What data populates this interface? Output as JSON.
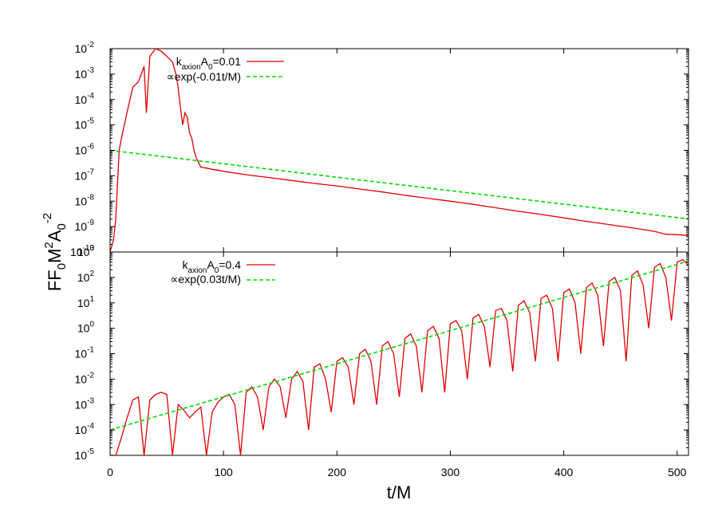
{
  "chart_data": [
    {
      "type": "line",
      "panel": "top",
      "x_range": [
        0,
        510
      ],
      "y_scale": "log",
      "ylim": [
        1e-10,
        0.01
      ],
      "y_ticks": [
        {
          "base": "10",
          "exp": "-10"
        },
        {
          "base": "10",
          "exp": "-9"
        },
        {
          "base": "10",
          "exp": "-8"
        },
        {
          "base": "10",
          "exp": "-7"
        },
        {
          "base": "10",
          "exp": "-6"
        },
        {
          "base": "10",
          "exp": "-5"
        },
        {
          "base": "10",
          "exp": "-4"
        },
        {
          "base": "10",
          "exp": "-3"
        },
        {
          "base": "10",
          "exp": "-2"
        }
      ],
      "legend_position": "top-left",
      "series": [
        {
          "name": "kaxionA0=0.01",
          "legend": {
            "main1": "k",
            "sub1": "axion",
            "main2": "A",
            "sub2": "0",
            "main3": "=0.01"
          },
          "color": "#e00000",
          "style": "solid",
          "x": [
            0,
            3,
            5,
            8,
            10,
            14,
            17,
            20,
            25,
            30,
            32,
            35,
            40,
            45,
            50,
            55,
            58,
            60,
            62,
            64,
            66,
            68,
            70,
            72,
            74,
            76,
            80,
            90,
            100,
            120,
            140,
            160,
            180,
            200,
            220,
            240,
            260,
            280,
            300,
            320,
            340,
            360,
            380,
            400,
            420,
            440,
            460,
            480,
            490,
            500,
            510
          ],
          "y": [
            1e-10,
            3e-10,
            2e-09,
            1e-06,
            3e-06,
            2e-05,
            8e-05,
            0.0003,
            0.0005,
            0.002,
            3e-05,
            0.005,
            0.01,
            0.008,
            0.005,
            0.003,
            0.001,
            0.0003,
            5e-05,
            1e-05,
            3e-05,
            2e-05,
            5e-06,
            3e-06,
            1e-06,
            5e-07,
            2.2e-07,
            1.8e-07,
            1.5e-07,
            1.1e-07,
            8.5e-08,
            6.5e-08,
            5e-08,
            4e-08,
            3e-08,
            2.3e-08,
            1.7e-08,
            1.3e-08,
            1e-08,
            7.5e-09,
            5.5e-09,
            4e-09,
            3e-09,
            2.2e-09,
            1.6e-09,
            1.2e-09,
            9e-10,
            6.5e-10,
            5e-10,
            4.8e-10,
            4.5e-10
          ]
        },
        {
          "name": "∝exp(-0.01t/M)",
          "color": "#00dd00",
          "style": "dashed",
          "x": [
            0,
            510
          ],
          "y": [
            1e-06,
            2e-09
          ]
        }
      ]
    },
    {
      "type": "line",
      "panel": "bottom",
      "x_range": [
        0,
        510
      ],
      "y_scale": "log",
      "ylim": [
        1e-05,
        1000.0
      ],
      "y_ticks": [
        {
          "base": "10",
          "exp": "-5"
        },
        {
          "base": "10",
          "exp": "-4"
        },
        {
          "base": "10",
          "exp": "-3"
        },
        {
          "base": "10",
          "exp": "-2"
        },
        {
          "base": "10",
          "exp": "-1"
        },
        {
          "base": "10",
          "exp": "0"
        },
        {
          "base": "10",
          "exp": "1"
        },
        {
          "base": "10",
          "exp": "2"
        },
        {
          "base": "10",
          "exp": "3"
        }
      ],
      "x_ticks": [
        "0",
        "100",
        "200",
        "300",
        "400",
        "500"
      ],
      "x_tick_values": [
        0,
        100,
        200,
        300,
        400,
        500
      ],
      "legend_position": "top-left",
      "series": [
        {
          "name": "kaxionA0=0.4",
          "legend": {
            "main1": "k",
            "sub1": "axion",
            "main2": "A",
            "sub2": "0",
            "main3": "=0.4"
          },
          "color": "#e00000",
          "style": "solid",
          "x": [
            0,
            5,
            10,
            15,
            20,
            25,
            30,
            35,
            40,
            45,
            50,
            55,
            60,
            65,
            70,
            75,
            80,
            85,
            90,
            95,
            100,
            105,
            110,
            115,
            120,
            125,
            130,
            135,
            140,
            145,
            150,
            155,
            160,
            165,
            170,
            175,
            180,
            185,
            190,
            195,
            200,
            205,
            210,
            215,
            220,
            225,
            230,
            235,
            240,
            245,
            250,
            255,
            260,
            265,
            270,
            275,
            280,
            285,
            290,
            295,
            300,
            305,
            310,
            315,
            320,
            325,
            330,
            335,
            340,
            345,
            350,
            355,
            360,
            365,
            370,
            375,
            380,
            385,
            390,
            395,
            400,
            405,
            410,
            415,
            420,
            425,
            430,
            435,
            440,
            445,
            450,
            455,
            460,
            465,
            470,
            475,
            480,
            485,
            490,
            495,
            500,
            505,
            510
          ],
          "y": [
            1e-05,
            1e-05,
            5e-05,
            0.0003,
            0.0015,
            0.002,
            1e-05,
            0.0015,
            0.0025,
            0.003,
            0.0025,
            1e-05,
            0.001,
            0.0006,
            0.0003,
            0.0005,
            0.0008,
            1e-05,
            0.0005,
            0.0012,
            0.002,
            0.0025,
            0.001,
            1e-05,
            0.003,
            0.005,
            0.002,
            0.0001,
            0.005,
            0.01,
            0.005,
            0.0003,
            0.01,
            0.02,
            0.008,
            0.0001,
            0.03,
            0.04,
            0.01,
            0.0005,
            0.05,
            0.07,
            0.03,
            0.001,
            0.1,
            0.15,
            0.05,
            0.001,
            0.2,
            0.3,
            0.1,
            0.002,
            0.4,
            0.6,
            0.2,
            0.003,
            0.8,
            1.2,
            0.4,
            0.003,
            1.5,
            2,
            0.8,
            0.01,
            2.5,
            3.5,
            1.2,
            0.03,
            5,
            6,
            2,
            0.02,
            8,
            12.0,
            4,
            0.05,
            15.0,
            20.0,
            6,
            0.05,
            25.0,
            35.0,
            10.0,
            0.1,
            40.0,
            60.0,
            20.0,
            0.2,
            70.0,
            100.0,
            30.0,
            0.05,
            120.0,
            180.0,
            50.0,
            1,
            250.0,
            350.0,
            100.0,
            2,
            400.0,
            500.0,
            300.0
          ]
        },
        {
          "name": "∝exp(0.03t/M)",
          "color": "#00dd00",
          "style": "dashed",
          "x": [
            0,
            510
          ],
          "y": [
            0.0001,
            440.0
          ]
        }
      ]
    }
  ],
  "labels": {
    "xlabel": "t/M",
    "ylabel": {
      "p1": "FF",
      "s1": "0",
      "p2": "M",
      "e1": "2",
      "p3": "A",
      "s2": "0",
      "e2": "-2"
    },
    "top_legend_2": "∝exp(-0.01t/M)",
    "bottom_legend_2": "∝exp(0.03t/M)"
  }
}
